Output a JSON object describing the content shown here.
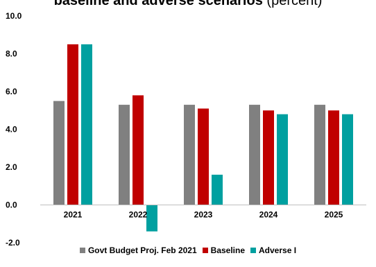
{
  "chart_data": {
    "type": "bar",
    "title_bold": "baseline and adverse scenarios",
    "title_light": "(percent)",
    "categories": [
      "2021",
      "2022",
      "2023",
      "2024",
      "2025"
    ],
    "series": [
      {
        "name": "Govt Budget Proj. Feb 2021",
        "values": [
          5.5,
          5.3,
          5.3,
          5.3,
          5.3
        ],
        "color": "#808080"
      },
      {
        "name": "Baseline",
        "values": [
          8.5,
          5.8,
          5.1,
          5.0,
          5.0
        ],
        "color": "#C00000"
      },
      {
        "name": "Adverse I",
        "values": [
          8.5,
          -1.4,
          1.6,
          4.8,
          4.8
        ],
        "color": "#00A0A0"
      }
    ],
    "y_ticks": [
      "10.0",
      "8.0",
      "6.0",
      "4.0",
      "2.0",
      "0.0",
      "-2.0"
    ],
    "ylim": [
      -2,
      10
    ],
    "grid": false,
    "legend_position": "bottom"
  }
}
